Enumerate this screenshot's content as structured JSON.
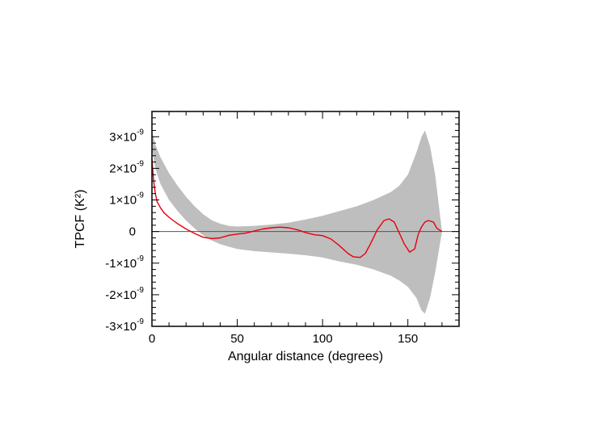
{
  "chart_data": {
    "type": "line",
    "xlabel": "Angular distance (degrees)",
    "ylabel": "TPCF (K²)",
    "xlim": [
      0,
      180
    ],
    "ylim": [
      -3e-09,
      3.8e-09
    ],
    "x_ticks": [
      {
        "value": 0,
        "label": "0"
      },
      {
        "value": 50,
        "label": "50"
      },
      {
        "value": 100,
        "label": "100"
      },
      {
        "value": 150,
        "label": "150"
      }
    ],
    "y_ticks": [
      {
        "value": 3e-09,
        "mantissa": "3×10",
        "exp": "-9"
      },
      {
        "value": 2e-09,
        "mantissa": "2×10",
        "exp": "-9"
      },
      {
        "value": 1e-09,
        "mantissa": "1×10",
        "exp": "-9"
      },
      {
        "value": 0,
        "mantissa": "0",
        "exp": ""
      },
      {
        "value": -1e-09,
        "mantissa": "-1×10",
        "exp": "-9"
      },
      {
        "value": -2e-09,
        "mantissa": "-2×10",
        "exp": "-9"
      },
      {
        "value": -3e-09,
        "mantissa": "-3×10",
        "exp": "-9"
      }
    ],
    "grid": false,
    "zero_line": true,
    "band": {
      "color": "#bebebe",
      "x": [
        0,
        2,
        5,
        10,
        15,
        20,
        25,
        30,
        35,
        40,
        45,
        50,
        60,
        70,
        80,
        90,
        100,
        110,
        120,
        130,
        140,
        145,
        150,
        155,
        158,
        160,
        163,
        166,
        170
      ],
      "upper": [
        3.2e-09,
        2.75e-09,
        2.35e-09,
        1.85e-09,
        1.45e-09,
        1.1e-09,
        8e-10,
        5.5e-10,
        3.6e-10,
        2.5e-10,
        1.8e-10,
        1.6e-10,
        1.8e-10,
        2.2e-10,
        2.8e-10,
        3.8e-10,
        5e-10,
        6.5e-10,
        8e-10,
        1e-09,
        1.25e-09,
        1.45e-09,
        1.8e-09,
        2.5e-09,
        3e-09,
        3.2e-09,
        2.7e-09,
        1.8e-09,
        0
      ],
      "lower": [
        2.6e-09,
        2e-09,
        1.5e-09,
        1e-09,
        6.5e-10,
        3.5e-10,
        1e-10,
        -1.2e-10,
        -2.8e-10,
        -4e-10,
        -4.8e-10,
        -5.5e-10,
        -6.2e-10,
        -6.6e-10,
        -7e-10,
        -7.5e-10,
        -8.2e-10,
        -9.5e-10,
        -1.05e-09,
        -1.2e-09,
        -1.4e-09,
        -1.55e-09,
        -1.75e-09,
        -2.1e-09,
        -2.5e-09,
        -2.6e-09,
        -2.1e-09,
        -1.3e-09,
        0
      ]
    },
    "series": [
      {
        "color": "#e8000b",
        "x": [
          0,
          1,
          2,
          3,
          5,
          7,
          10,
          15,
          20,
          25,
          30,
          35,
          40,
          45,
          50,
          55,
          60,
          65,
          70,
          75,
          80,
          85,
          90,
          95,
          100,
          105,
          110,
          115,
          118,
          122,
          125,
          128,
          132,
          136,
          139,
          142,
          145,
          148,
          151,
          154,
          156,
          158,
          160,
          162,
          165,
          167,
          170
        ],
        "y": [
          2.3e-09,
          1.6e-09,
          1.2e-09,
          9.5e-10,
          7.5e-10,
          6e-10,
          4.5e-10,
          2.5e-10,
          8e-11,
          -6e-11,
          -1.8e-10,
          -2.2e-10,
          -2e-10,
          -1.2e-10,
          -8e-11,
          -5e-11,
          2e-11,
          8e-11,
          1.2e-10,
          1.4e-10,
          1.2e-10,
          6e-11,
          -3e-11,
          -1e-10,
          -1.3e-10,
          -2.4e-10,
          -4.5e-10,
          -7e-10,
          -8e-10,
          -8.2e-10,
          -7e-10,
          -4e-10,
          5e-11,
          3.5e-10,
          4e-10,
          3e-10,
          -5e-11,
          -4e-10,
          -6.5e-10,
          -5.5e-10,
          -1e-10,
          1.5e-10,
          3e-10,
          3.5e-10,
          3e-10,
          1e-10,
          0
        ]
      }
    ]
  }
}
